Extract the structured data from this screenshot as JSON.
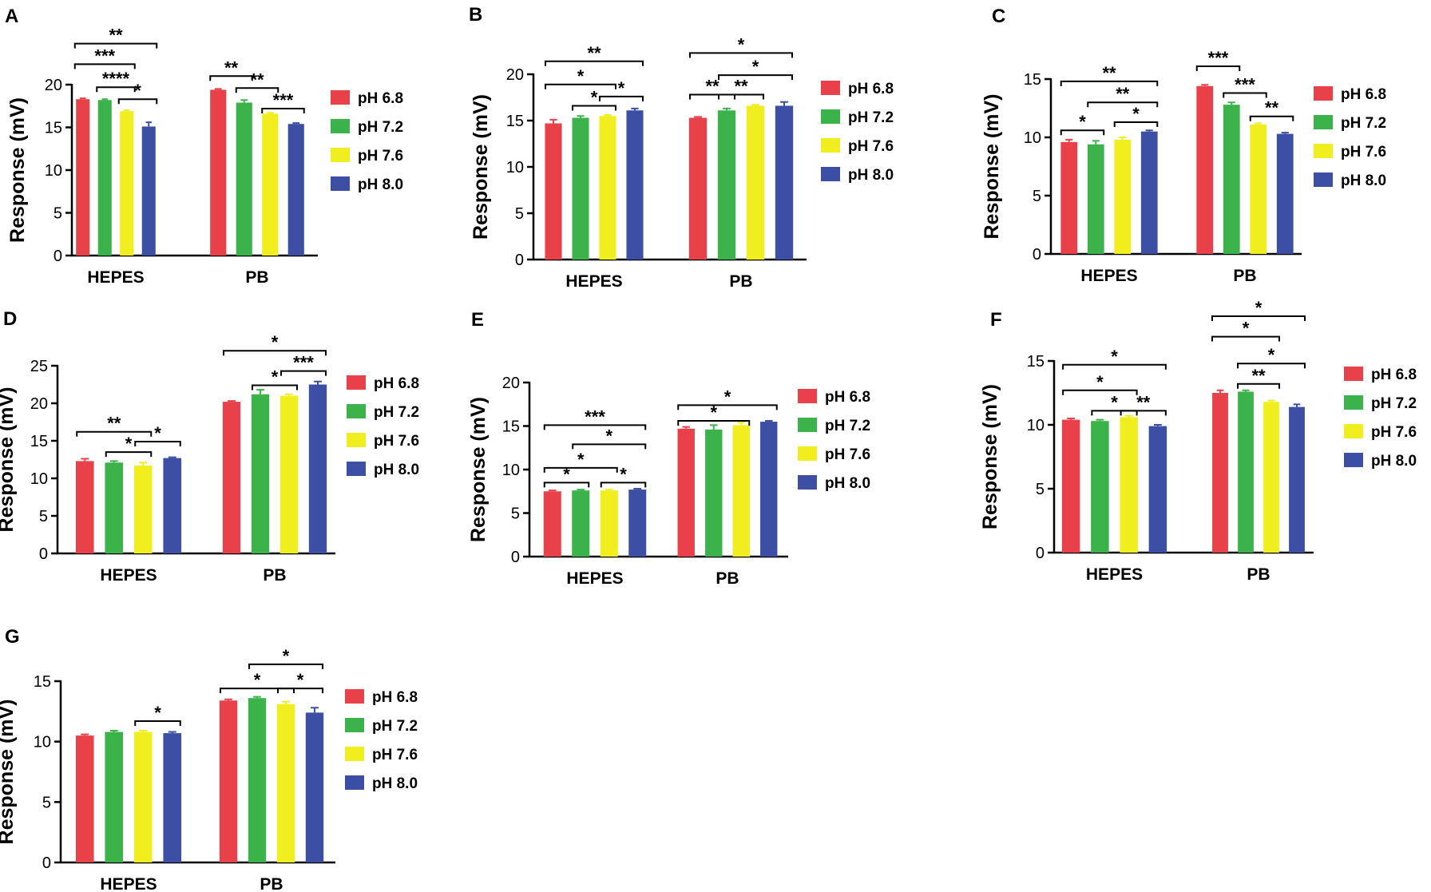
{
  "colors": {
    "pH 6.8": "#e8414a",
    "pH 7.2": "#3bb34a",
    "pH 7.6": "#f0ee1e",
    "pH 8.0": "#3c4fa5"
  },
  "chart_data": [
    {
      "panel": "A",
      "type": "bar",
      "xlabel": "",
      "ylabel": "Response (mV)",
      "ylim": [
        0,
        20
      ],
      "yticks": [
        0,
        5,
        10,
        15,
        20
      ],
      "categories": [
        "HEPES",
        "PB"
      ],
      "series": [
        {
          "name": "pH 6.8",
          "values": [
            18.3,
            19.4
          ],
          "errors": [
            0.1,
            0.1
          ]
        },
        {
          "name": "pH 7.2",
          "values": [
            18.2,
            17.9
          ],
          "errors": [
            0.1,
            0.3
          ]
        },
        {
          "name": "pH 7.6",
          "values": [
            16.9,
            16.6
          ],
          "errors": [
            0.1,
            0.1
          ]
        },
        {
          "name": "pH 8.0",
          "values": [
            15.1,
            15.4
          ],
          "errors": [
            0.5,
            0.1
          ]
        }
      ],
      "annotations": [
        {
          "cat": 0,
          "from": 0,
          "to": 3,
          "y": 24.8,
          "label": "**"
        },
        {
          "cat": 0,
          "from": 0,
          "to": 2,
          "y": 22.4,
          "label": "***"
        },
        {
          "cat": 0,
          "from": 1,
          "to": 2,
          "y": 19.7,
          "label": "****"
        },
        {
          "cat": 0,
          "from": 2,
          "to": 3,
          "y": 18.3,
          "label": "*"
        },
        {
          "cat": 1,
          "from": 0,
          "to": 1,
          "y": 21.0,
          "label": "**"
        },
        {
          "cat": 1,
          "from": 1,
          "to": 2,
          "y": 19.6,
          "label": "**"
        },
        {
          "cat": 1,
          "from": 2,
          "to": 3,
          "y": 17.2,
          "label": "***"
        }
      ]
    },
    {
      "panel": "B",
      "type": "bar",
      "xlabel": "",
      "ylabel": "Response (mV)",
      "ylim": [
        0,
        20
      ],
      "yticks": [
        0,
        5,
        10,
        15,
        20
      ],
      "categories": [
        "HEPES",
        "PB"
      ],
      "series": [
        {
          "name": "pH 6.8",
          "values": [
            14.7,
            15.3
          ],
          "errors": [
            0.4,
            0.1
          ]
        },
        {
          "name": "pH 7.2",
          "values": [
            15.3,
            16.1
          ],
          "errors": [
            0.2,
            0.2
          ]
        },
        {
          "name": "pH 7.6",
          "values": [
            15.5,
            16.6
          ],
          "errors": [
            0.1,
            0.1
          ]
        },
        {
          "name": "pH 8.0",
          "values": [
            16.1,
            16.6
          ],
          "errors": [
            0.2,
            0.4
          ]
        }
      ],
      "annotations": [
        {
          "cat": 0,
          "from": 0,
          "to": 3,
          "y": 21.4,
          "label": "**"
        },
        {
          "cat": 0,
          "from": 0,
          "to": 2,
          "y": 18.9,
          "label": "*"
        },
        {
          "cat": 0,
          "from": 2,
          "to": 3,
          "y": 17.6,
          "label": "*"
        },
        {
          "cat": 0,
          "from": 1,
          "to": 2,
          "y": 16.6,
          "label": "*"
        },
        {
          "cat": 1,
          "from": 0,
          "to": 3,
          "y": 22.3,
          "label": "*"
        },
        {
          "cat": 1,
          "from": 1,
          "to": 3,
          "y": 19.9,
          "label": "*"
        },
        {
          "cat": 1,
          "from": 0,
          "to": 1,
          "y": 17.8,
          "label": "**"
        },
        {
          "cat": 1,
          "from": 1,
          "to": 2,
          "y": 17.8,
          "label": "**"
        }
      ]
    },
    {
      "panel": "C",
      "type": "bar",
      "xlabel": "",
      "ylabel": "Response (mV)",
      "ylim": [
        0,
        15
      ],
      "yticks": [
        0,
        5,
        10,
        15
      ],
      "categories": [
        "HEPES",
        "PB"
      ],
      "series": [
        {
          "name": "pH 6.8",
          "values": [
            9.6,
            14.4
          ],
          "errors": [
            0.2,
            0.1
          ]
        },
        {
          "name": "pH 7.2",
          "values": [
            9.4,
            12.8
          ],
          "errors": [
            0.3,
            0.2
          ]
        },
        {
          "name": "pH 7.6",
          "values": [
            9.8,
            11.1
          ],
          "errors": [
            0.2,
            0.1
          ]
        },
        {
          "name": "pH 8.0",
          "values": [
            10.5,
            10.3
          ],
          "errors": [
            0.1,
            0.1
          ]
        }
      ],
      "annotations": [
        {
          "cat": 0,
          "from": 0,
          "to": 3,
          "y": 14.8,
          "label": "**"
        },
        {
          "cat": 0,
          "from": 1,
          "to": 3,
          "y": 13.0,
          "label": "**"
        },
        {
          "cat": 0,
          "from": 2,
          "to": 3,
          "y": 11.3,
          "label": "*"
        },
        {
          "cat": 0,
          "from": 0,
          "to": 1,
          "y": 10.6,
          "label": "*"
        },
        {
          "cat": 1,
          "from": 0,
          "to": 1,
          "y": 16.1,
          "label": "***"
        },
        {
          "cat": 1,
          "from": 1,
          "to": 2,
          "y": 13.8,
          "label": "***"
        },
        {
          "cat": 1,
          "from": 2,
          "to": 3,
          "y": 11.8,
          "label": "**"
        }
      ]
    },
    {
      "panel": "D",
      "type": "bar",
      "xlabel": "",
      "ylabel": "Response (mV)",
      "ylim": [
        0,
        25
      ],
      "yticks": [
        0,
        5,
        10,
        15,
        20,
        25
      ],
      "categories": [
        "HEPES",
        "PB"
      ],
      "series": [
        {
          "name": "pH 6.8",
          "values": [
            12.3,
            20.2
          ],
          "errors": [
            0.3,
            0.1
          ]
        },
        {
          "name": "pH 7.2",
          "values": [
            12.1,
            21.2
          ],
          "errors": [
            0.2,
            0.6
          ]
        },
        {
          "name": "pH 7.6",
          "values": [
            11.7,
            21.0
          ],
          "errors": [
            0.4,
            0.2
          ]
        },
        {
          "name": "pH 8.0",
          "values": [
            12.7,
            22.5
          ],
          "errors": [
            0.1,
            0.4
          ]
        }
      ],
      "annotations": [
        {
          "cat": 0,
          "from": 0,
          "to": 2,
          "y": 16.2,
          "label": "**"
        },
        {
          "cat": 0,
          "from": 2,
          "to": 3,
          "y": 14.9,
          "label": "*"
        },
        {
          "cat": 0,
          "from": 1,
          "to": 2,
          "y": 13.5,
          "label": "*"
        },
        {
          "cat": 1,
          "from": 0,
          "to": 3,
          "y": 27.0,
          "label": "*"
        },
        {
          "cat": 1,
          "from": 2,
          "to": 3,
          "y": 24.3,
          "label": "***"
        },
        {
          "cat": 1,
          "from": 1,
          "to": 2,
          "y": 22.4,
          "label": "*"
        }
      ]
    },
    {
      "panel": "E",
      "type": "bar",
      "xlabel": "",
      "ylabel": "Response (mV)",
      "ylim": [
        0,
        20
      ],
      "yticks": [
        0,
        5,
        10,
        15,
        20
      ],
      "categories": [
        "HEPES",
        "PB"
      ],
      "series": [
        {
          "name": "pH 6.8",
          "values": [
            7.5,
            14.7
          ],
          "errors": [
            0.1,
            0.2
          ]
        },
        {
          "name": "pH 7.2",
          "values": [
            7.6,
            14.6
          ],
          "errors": [
            0.1,
            0.5
          ]
        },
        {
          "name": "pH 7.6",
          "values": [
            7.6,
            15.1
          ],
          "errors": [
            0.1,
            0.3
          ]
        },
        {
          "name": "pH 8.0",
          "values": [
            7.7,
            15.5
          ],
          "errors": [
            0.1,
            0.1
          ]
        }
      ],
      "annotations": [
        {
          "cat": 0,
          "from": 0,
          "to": 3,
          "y": 15.1,
          "label": "***"
        },
        {
          "cat": 0,
          "from": 1,
          "to": 3,
          "y": 12.9,
          "label": "*"
        },
        {
          "cat": 0,
          "from": 0,
          "to": 2,
          "y": 10.2,
          "label": "*"
        },
        {
          "cat": 0,
          "from": 0,
          "to": 1,
          "y": 8.5,
          "label": "*"
        },
        {
          "cat": 0,
          "from": 2,
          "to": 3,
          "y": 8.5,
          "label": "*"
        },
        {
          "cat": 1,
          "from": 0,
          "to": 3,
          "y": 17.4,
          "label": "*"
        },
        {
          "cat": 1,
          "from": 0,
          "to": 2,
          "y": 15.6,
          "label": "*"
        }
      ]
    },
    {
      "panel": "F",
      "type": "bar",
      "xlabel": "",
      "ylabel": "Response (mV)",
      "ylim": [
        0,
        15
      ],
      "yticks": [
        0,
        5,
        10,
        15
      ],
      "categories": [
        "HEPES",
        "PB"
      ],
      "series": [
        {
          "name": "pH 6.8",
          "values": [
            10.4,
            12.5
          ],
          "errors": [
            0.1,
            0.2
          ]
        },
        {
          "name": "pH 7.2",
          "values": [
            10.3,
            12.6
          ],
          "errors": [
            0.1,
            0.1
          ]
        },
        {
          "name": "pH 7.6",
          "values": [
            10.6,
            11.8
          ],
          "errors": [
            0.1,
            0.1
          ]
        },
        {
          "name": "pH 8.0",
          "values": [
            9.9,
            11.4
          ],
          "errors": [
            0.1,
            0.2
          ]
        }
      ],
      "annotations": [
        {
          "cat": 0,
          "from": 0,
          "to": 3,
          "y": 14.7,
          "label": "*"
        },
        {
          "cat": 0,
          "from": 0,
          "to": 2,
          "y": 12.7,
          "label": "*"
        },
        {
          "cat": 0,
          "from": 1,
          "to": 2,
          "y": 11.1,
          "label": "*"
        },
        {
          "cat": 0,
          "from": 2,
          "to": 3,
          "y": 11.1,
          "label": "**"
        },
        {
          "cat": 1,
          "from": 0,
          "to": 3,
          "y": 18.5,
          "label": "*"
        },
        {
          "cat": 1,
          "from": 0,
          "to": 2,
          "y": 16.9,
          "label": "*"
        },
        {
          "cat": 1,
          "from": 1,
          "to": 3,
          "y": 14.8,
          "label": "*"
        },
        {
          "cat": 1,
          "from": 1,
          "to": 2,
          "y": 13.2,
          "label": "**"
        }
      ]
    },
    {
      "panel": "G",
      "type": "bar",
      "xlabel": "",
      "ylabel": "Response (mV)",
      "ylim": [
        0,
        15
      ],
      "yticks": [
        0,
        5,
        10,
        15
      ],
      "categories": [
        "HEPES",
        "PB"
      ],
      "series": [
        {
          "name": "pH 6.8",
          "values": [
            10.5,
            13.4
          ],
          "errors": [
            0.1,
            0.1
          ]
        },
        {
          "name": "pH 7.2",
          "values": [
            10.8,
            13.6
          ],
          "errors": [
            0.1,
            0.1
          ]
        },
        {
          "name": "pH 7.6",
          "values": [
            10.8,
            13.1
          ],
          "errors": [
            0.1,
            0.2
          ]
        },
        {
          "name": "pH 8.0",
          "values": [
            10.7,
            12.4
          ],
          "errors": [
            0.1,
            0.4
          ]
        }
      ],
      "annotations": [
        {
          "cat": 0,
          "from": 2,
          "to": 3,
          "y": 11.7,
          "label": "*"
        },
        {
          "cat": 1,
          "from": 1,
          "to": 3,
          "y": 16.4,
          "label": "*"
        },
        {
          "cat": 1,
          "from": 0,
          "to": 2,
          "y": 14.4,
          "label": "*"
        },
        {
          "cat": 1,
          "from": 2,
          "to": 3,
          "y": 14.4,
          "label": "*"
        }
      ]
    }
  ]
}
